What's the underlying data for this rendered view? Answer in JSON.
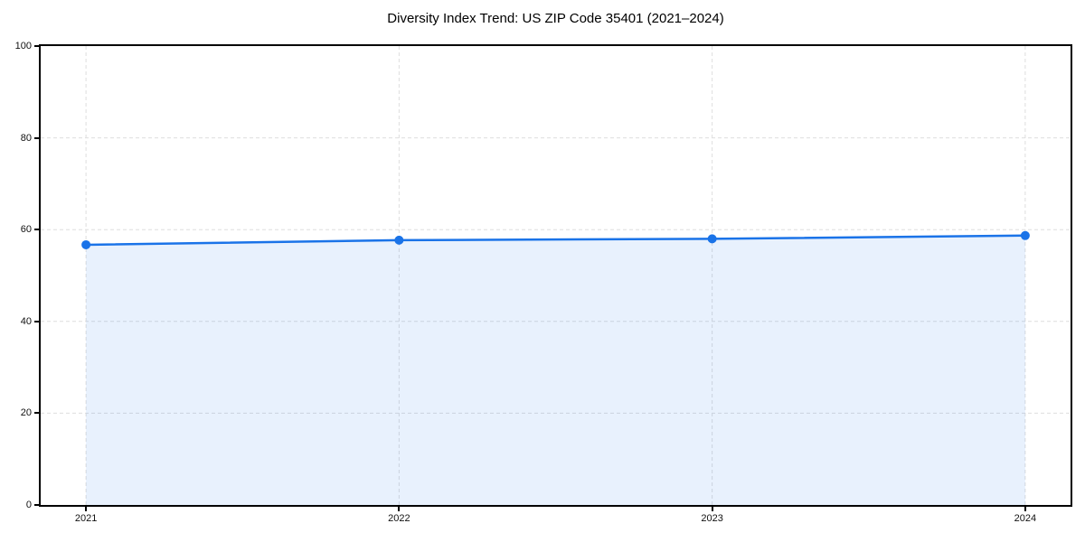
{
  "chart_data": {
    "type": "line",
    "title": "Diversity Index Trend: US ZIP Code 35401 (2021–2024)",
    "x": [
      "2021",
      "2022",
      "2023",
      "2024"
    ],
    "series": [
      {
        "name": "Diversity Index",
        "values": [
          56.7,
          57.7,
          58.0,
          58.7
        ]
      }
    ],
    "xlabel": "",
    "ylabel": "",
    "ylim": [
      0,
      100
    ],
    "yticks": [
      0,
      20,
      40,
      60,
      80,
      100
    ],
    "grid": true,
    "grid_style": "dashed",
    "legend": false,
    "colors": {
      "line": "#1a73e8",
      "marker": "#1a73e8",
      "area_fill": "rgba(26,115,232,0.10)",
      "gridline": "#dedede",
      "axis": "#000000",
      "text": "#000000",
      "background": "#ffffff"
    }
  }
}
